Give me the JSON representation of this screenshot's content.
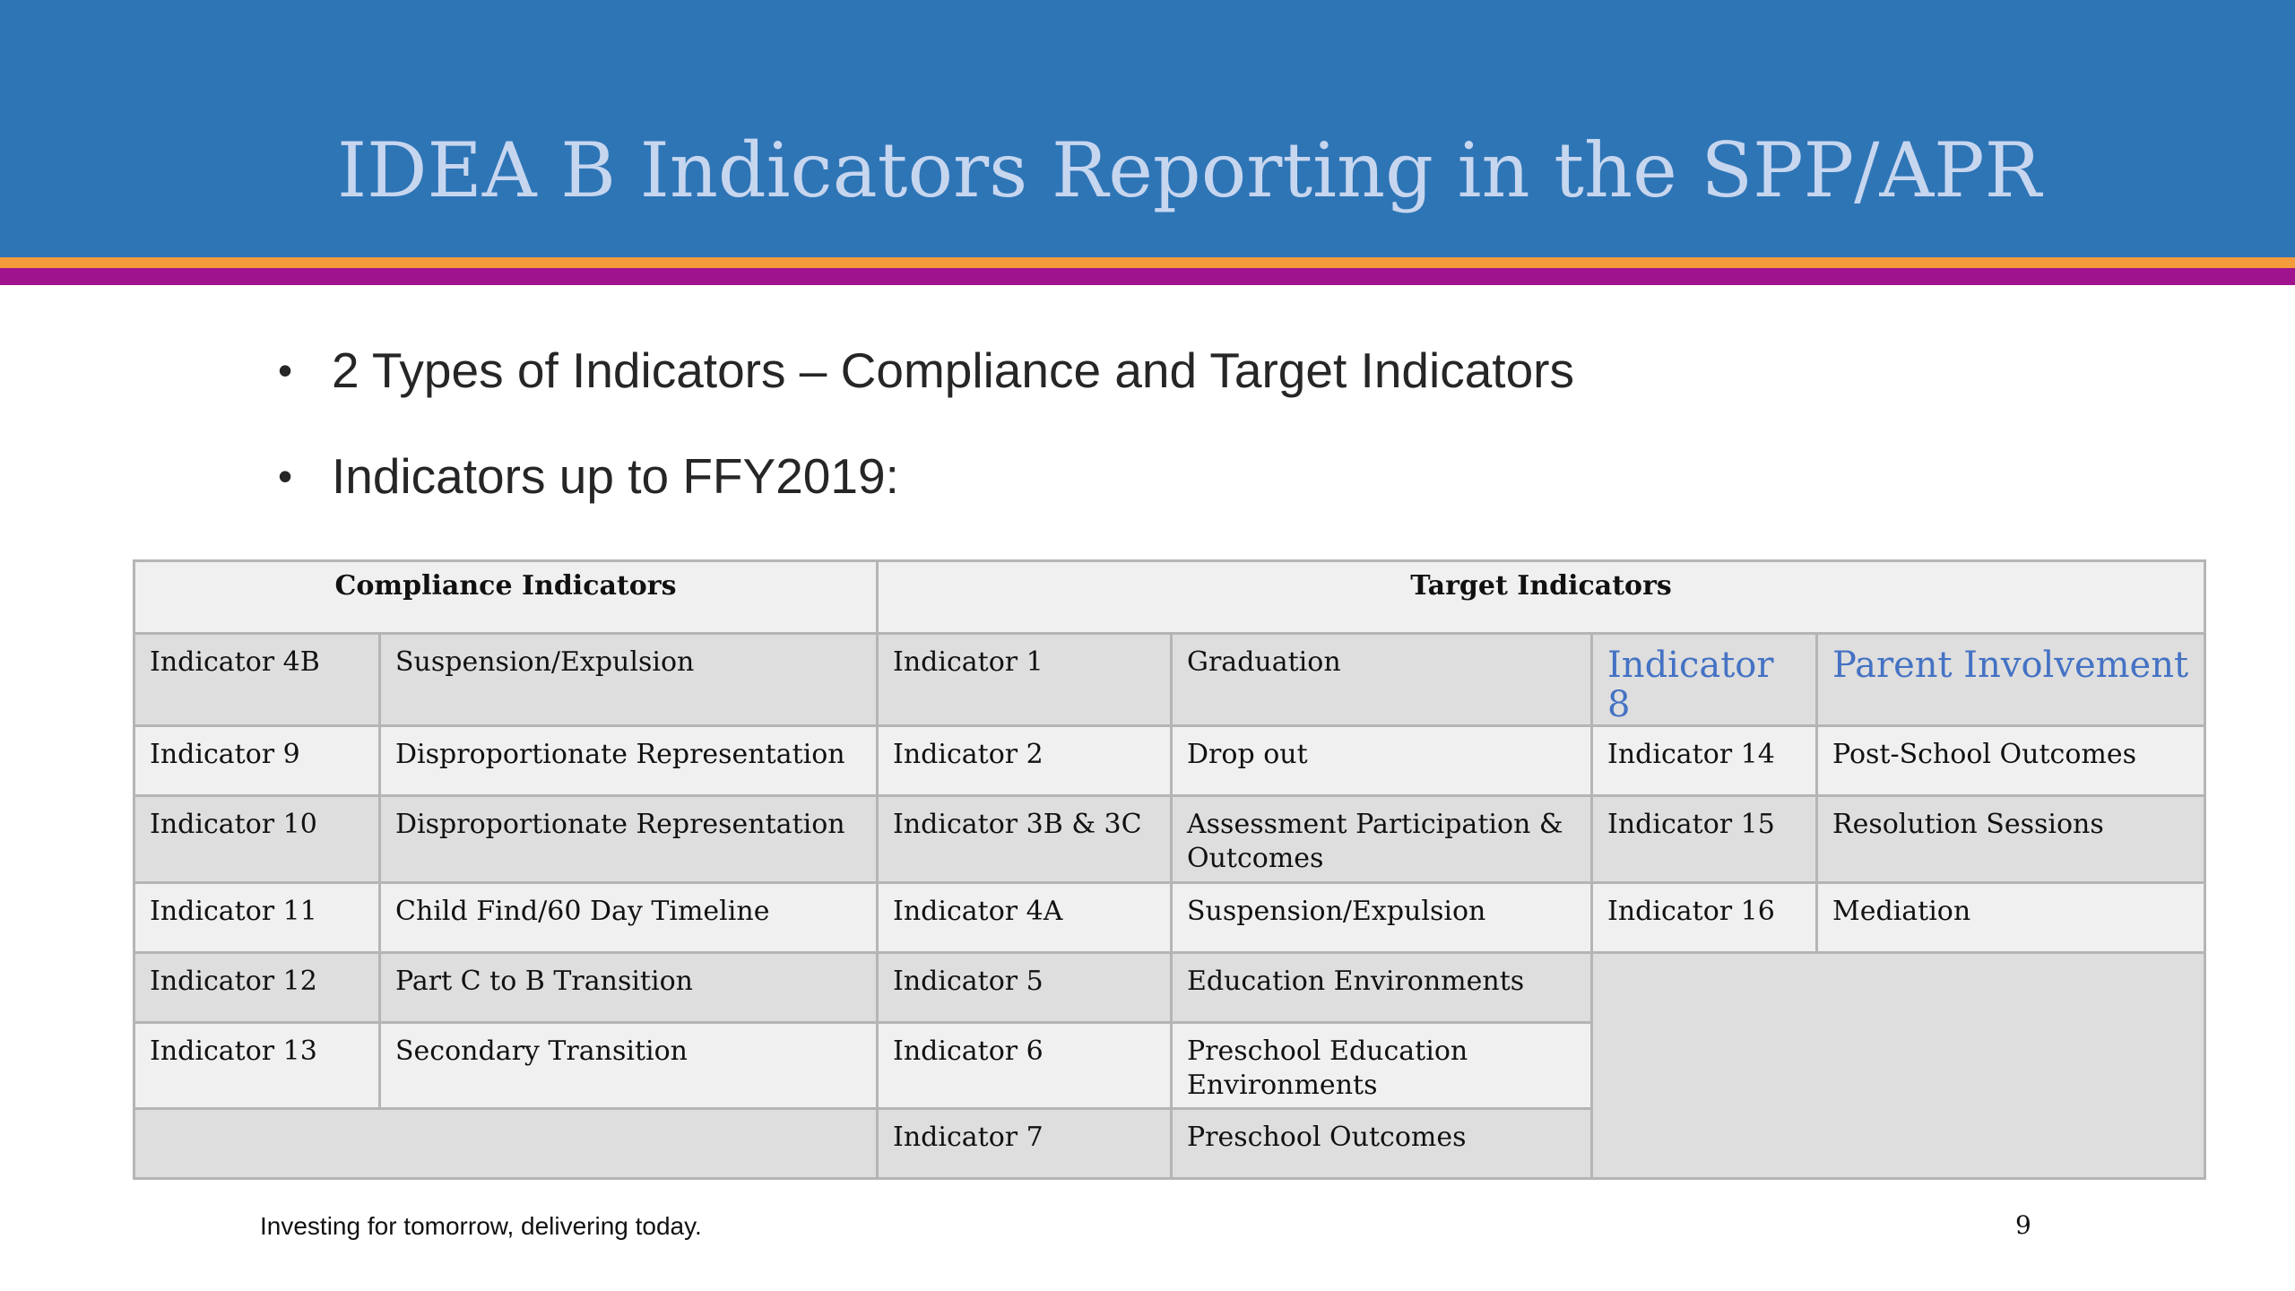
{
  "slide": {
    "title": "IDEA B Indicators Reporting in the SPP/APR",
    "bullets": [
      "2 Types of Indicators – Compliance and Target Indicators",
      "Indicators up to FFY2019:"
    ],
    "bullet_symbol": "•",
    "footer": "Investing for tomorrow, delivering today.",
    "page_number": "9",
    "colors": {
      "header": "#2e75b6",
      "title_text": "#c7d6ef",
      "stripe_orange": "#f39a3b",
      "stripe_purple": "#a0138e",
      "highlight_text": "#4472c4"
    }
  },
  "table": {
    "headers": {
      "compliance": "Compliance Indicators",
      "target": "Target Indicators"
    },
    "rows": [
      {
        "c_num": "Indicator 4B",
        "c_name": "Suspension/Expulsion",
        "t_num": "Indicator 1",
        "t_name": "Graduation",
        "t2_num": "Indicator 8",
        "t2_name": "Parent Involvement"
      },
      {
        "c_num": "Indicator 9",
        "c_name": "Disproportionate Representation",
        "t_num": "Indicator 2",
        "t_name": "Drop out",
        "t2_num": "Indicator 14",
        "t2_name": "Post-School Outcomes"
      },
      {
        "c_num": "Indicator 10",
        "c_name": "Disproportionate Representation",
        "t_num": "Indicator 3B & 3C",
        "t_name": "Assessment Participation & Outcomes",
        "t2_num": "Indicator 15",
        "t2_name": "Resolution Sessions"
      },
      {
        "c_num": "Indicator 11",
        "c_name": "Child Find/60 Day Timeline",
        "t_num": "Indicator 4A",
        "t_name": "Suspension/Expulsion",
        "t2_num": "Indicator 16",
        "t2_name": "Mediation"
      },
      {
        "c_num": "Indicator 12",
        "c_name": "Part C to B Transition",
        "t_num": "Indicator 5",
        "t_name": "Education Environments"
      },
      {
        "c_num": "Indicator 13",
        "c_name": "Secondary Transition",
        "t_num": "Indicator 6",
        "t_name": "Preschool Education Environments"
      },
      {
        "t_num": "Indicator 7",
        "t_name": "Preschool Outcomes"
      }
    ]
  }
}
